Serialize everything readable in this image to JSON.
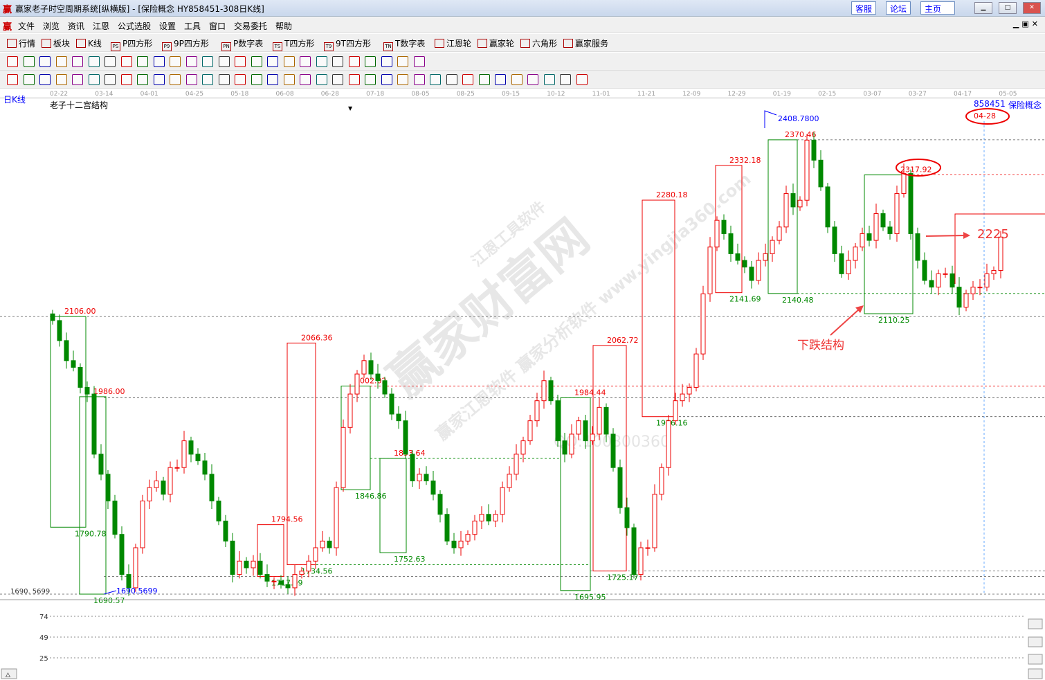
{
  "window": {
    "title": "赢家老子时空周期系统[纵横版] - [保险概念  HY858451-308日K线]",
    "logo": "赢",
    "buttons": [
      "客服",
      "论坛",
      "主页"
    ]
  },
  "menu": [
    "文件",
    "浏览",
    "资讯",
    "江恩",
    "公式选股",
    "设置",
    "工具",
    "窗口",
    "交易委托",
    "帮助"
  ],
  "toolbar": [
    {
      "icon": "grid-icon",
      "label": "行情"
    },
    {
      "icon": "blocks-icon",
      "label": "板块"
    },
    {
      "icon": "candles-icon",
      "label": "K线"
    },
    {
      "icon": "PS",
      "label": "P四方形"
    },
    {
      "icon": "P9",
      "label": "9P四方形"
    },
    {
      "icon": "PN",
      "label": "P数字表"
    },
    {
      "icon": "TS",
      "label": "T四方形"
    },
    {
      "icon": "T9",
      "label": "9T四方形"
    },
    {
      "icon": "TN",
      "label": "T数字表"
    },
    {
      "icon": "gann-wheel-icon",
      "label": "江恩轮"
    },
    {
      "icon": "yingjia-wheel-icon",
      "label": "赢家轮"
    },
    {
      "icon": "hexagon-icon",
      "label": "六角形"
    },
    {
      "icon": "dollar-icon",
      "label": "赢家服务"
    }
  ],
  "chart_header": {
    "period": "日K线",
    "indicator": "老子十二宫结构",
    "code": "858451",
    "name": "保险概念",
    "marker_date": "04-28"
  },
  "chart_data": {
    "type": "candlestick",
    "x_ticks": [
      "02-22",
      "03-14",
      "04-01",
      "04-25",
      "05-18",
      "06-08",
      "06-28",
      "07-18",
      "08-05",
      "08-25",
      "09-15",
      "10-12",
      "11-01",
      "11-21",
      "12-09",
      "12-29",
      "01-19",
      "02-15",
      "03-07",
      "03-27",
      "04-17",
      "05-05"
    ],
    "ylim": [
      1690.5699,
      2408.78
    ],
    "y_label_low": "1690. 5699",
    "closes": [
      2100,
      2070,
      2040,
      2030,
      2000,
      1990,
      1900,
      1870,
      1830,
      1780,
      1720,
      1700,
      1760,
      1830,
      1850,
      1860,
      1840,
      1880,
      1880,
      1920,
      1900,
      1890,
      1870,
      1830,
      1800,
      1770,
      1720,
      1740,
      1730,
      1740,
      1720,
      1710,
      1710,
      1705,
      1700,
      1720,
      1725,
      1740,
      1760,
      1770,
      1760,
      1850,
      1940,
      1990,
      2020,
      2040,
      2020,
      2010,
      1990,
      1960,
      1950,
      1900,
      1860,
      1870,
      1860,
      1840,
      1810,
      1770,
      1760,
      1770,
      1780,
      1800,
      1810,
      1800,
      1810,
      1850,
      1870,
      1900,
      1920,
      1950,
      1980,
      2010,
      1980,
      1920,
      1900,
      1930,
      1950,
      1920,
      1930,
      1970,
      1930,
      1880,
      1820,
      1790,
      1720,
      1760,
      1760,
      1840,
      1880,
      1950,
      1980,
      1990,
      2000,
      2050,
      2140,
      2210,
      2250,
      2230,
      2200,
      2190,
      2180,
      2160,
      2190,
      2200,
      2220,
      2240,
      2290,
      2270,
      2280,
      2370,
      2340,
      2300,
      2240,
      2200,
      2170,
      2190,
      2210,
      2230,
      2220,
      2260,
      2240,
      2230,
      2290,
      2320,
      2230,
      2190,
      2160,
      2150,
      2170,
      2170,
      2150,
      2120,
      2140,
      2150,
      2150,
      2170,
      2175,
      2225
    ],
    "high_mark": "2408.7800",
    "low_mark": "1690.5699",
    "boxes": [
      {
        "hi": 2106.0,
        "lo": 1790.78,
        "color": "#080",
        "top": "2106.00",
        "bottom": "1790.78"
      },
      {
        "hi": 1986.0,
        "lo": 1690.57,
        "color": "#080",
        "top": "1986.00",
        "bottom": "1690.57"
      },
      {
        "hi": 1794.56,
        "lo": 1717.09,
        "color": "#e00",
        "top": "1794.56",
        "bottom": "1717.09"
      },
      {
        "hi": 2066.36,
        "lo": 1734.56,
        "color": "#e00",
        "top": "2066.36",
        "bottom": "1734.56"
      },
      {
        "hi": 2002.02,
        "lo": 1846.86,
        "color": "#080",
        "top": "2002.02",
        "bottom": "1846.86"
      },
      {
        "hi": 1893.64,
        "lo": 1752.63,
        "color": "#080",
        "top": "1893.64",
        "bottom": "1752.63"
      },
      {
        "hi": 1984.44,
        "lo": 1695.95,
        "color": "#080",
        "top": "1984.44",
        "bottom": "1695.95"
      },
      {
        "hi": 2062.72,
        "lo": 1725.17,
        "color": "#e00",
        "top": "2062.72",
        "bottom": "1725.17"
      },
      {
        "hi": 2280.18,
        "lo": 1956.16,
        "color": "#e00",
        "top": "2280.18",
        "bottom": "1956.16"
      },
      {
        "hi": 2332.18,
        "lo": 2141.69,
        "color": "#e00",
        "top": "2332.18",
        "bottom": "2141.69"
      },
      {
        "hi": 2370.46,
        "lo": 2140.48,
        "color": "#080",
        "top": "2370.46",
        "bottom": "2140.48"
      },
      {
        "hi": 2317.92,
        "lo": 2110.25,
        "color": "#080",
        "top": "2317.92",
        "bottom": "2110.25"
      }
    ],
    "annotations": {
      "structure": "下跌结构",
      "target": "2225"
    },
    "volume_ticks": [
      "74",
      "49",
      "25"
    ]
  },
  "watermark": {
    "main": "赢家财富网",
    "line1": "赢家江恩软件 赢家分析软件 www.yingjia360.com",
    "line2": "QQ:100800360",
    "line3": "江恩工具软件"
  },
  "colors": {
    "up": "#e00",
    "down": "#080",
    "accent": "#00f"
  }
}
